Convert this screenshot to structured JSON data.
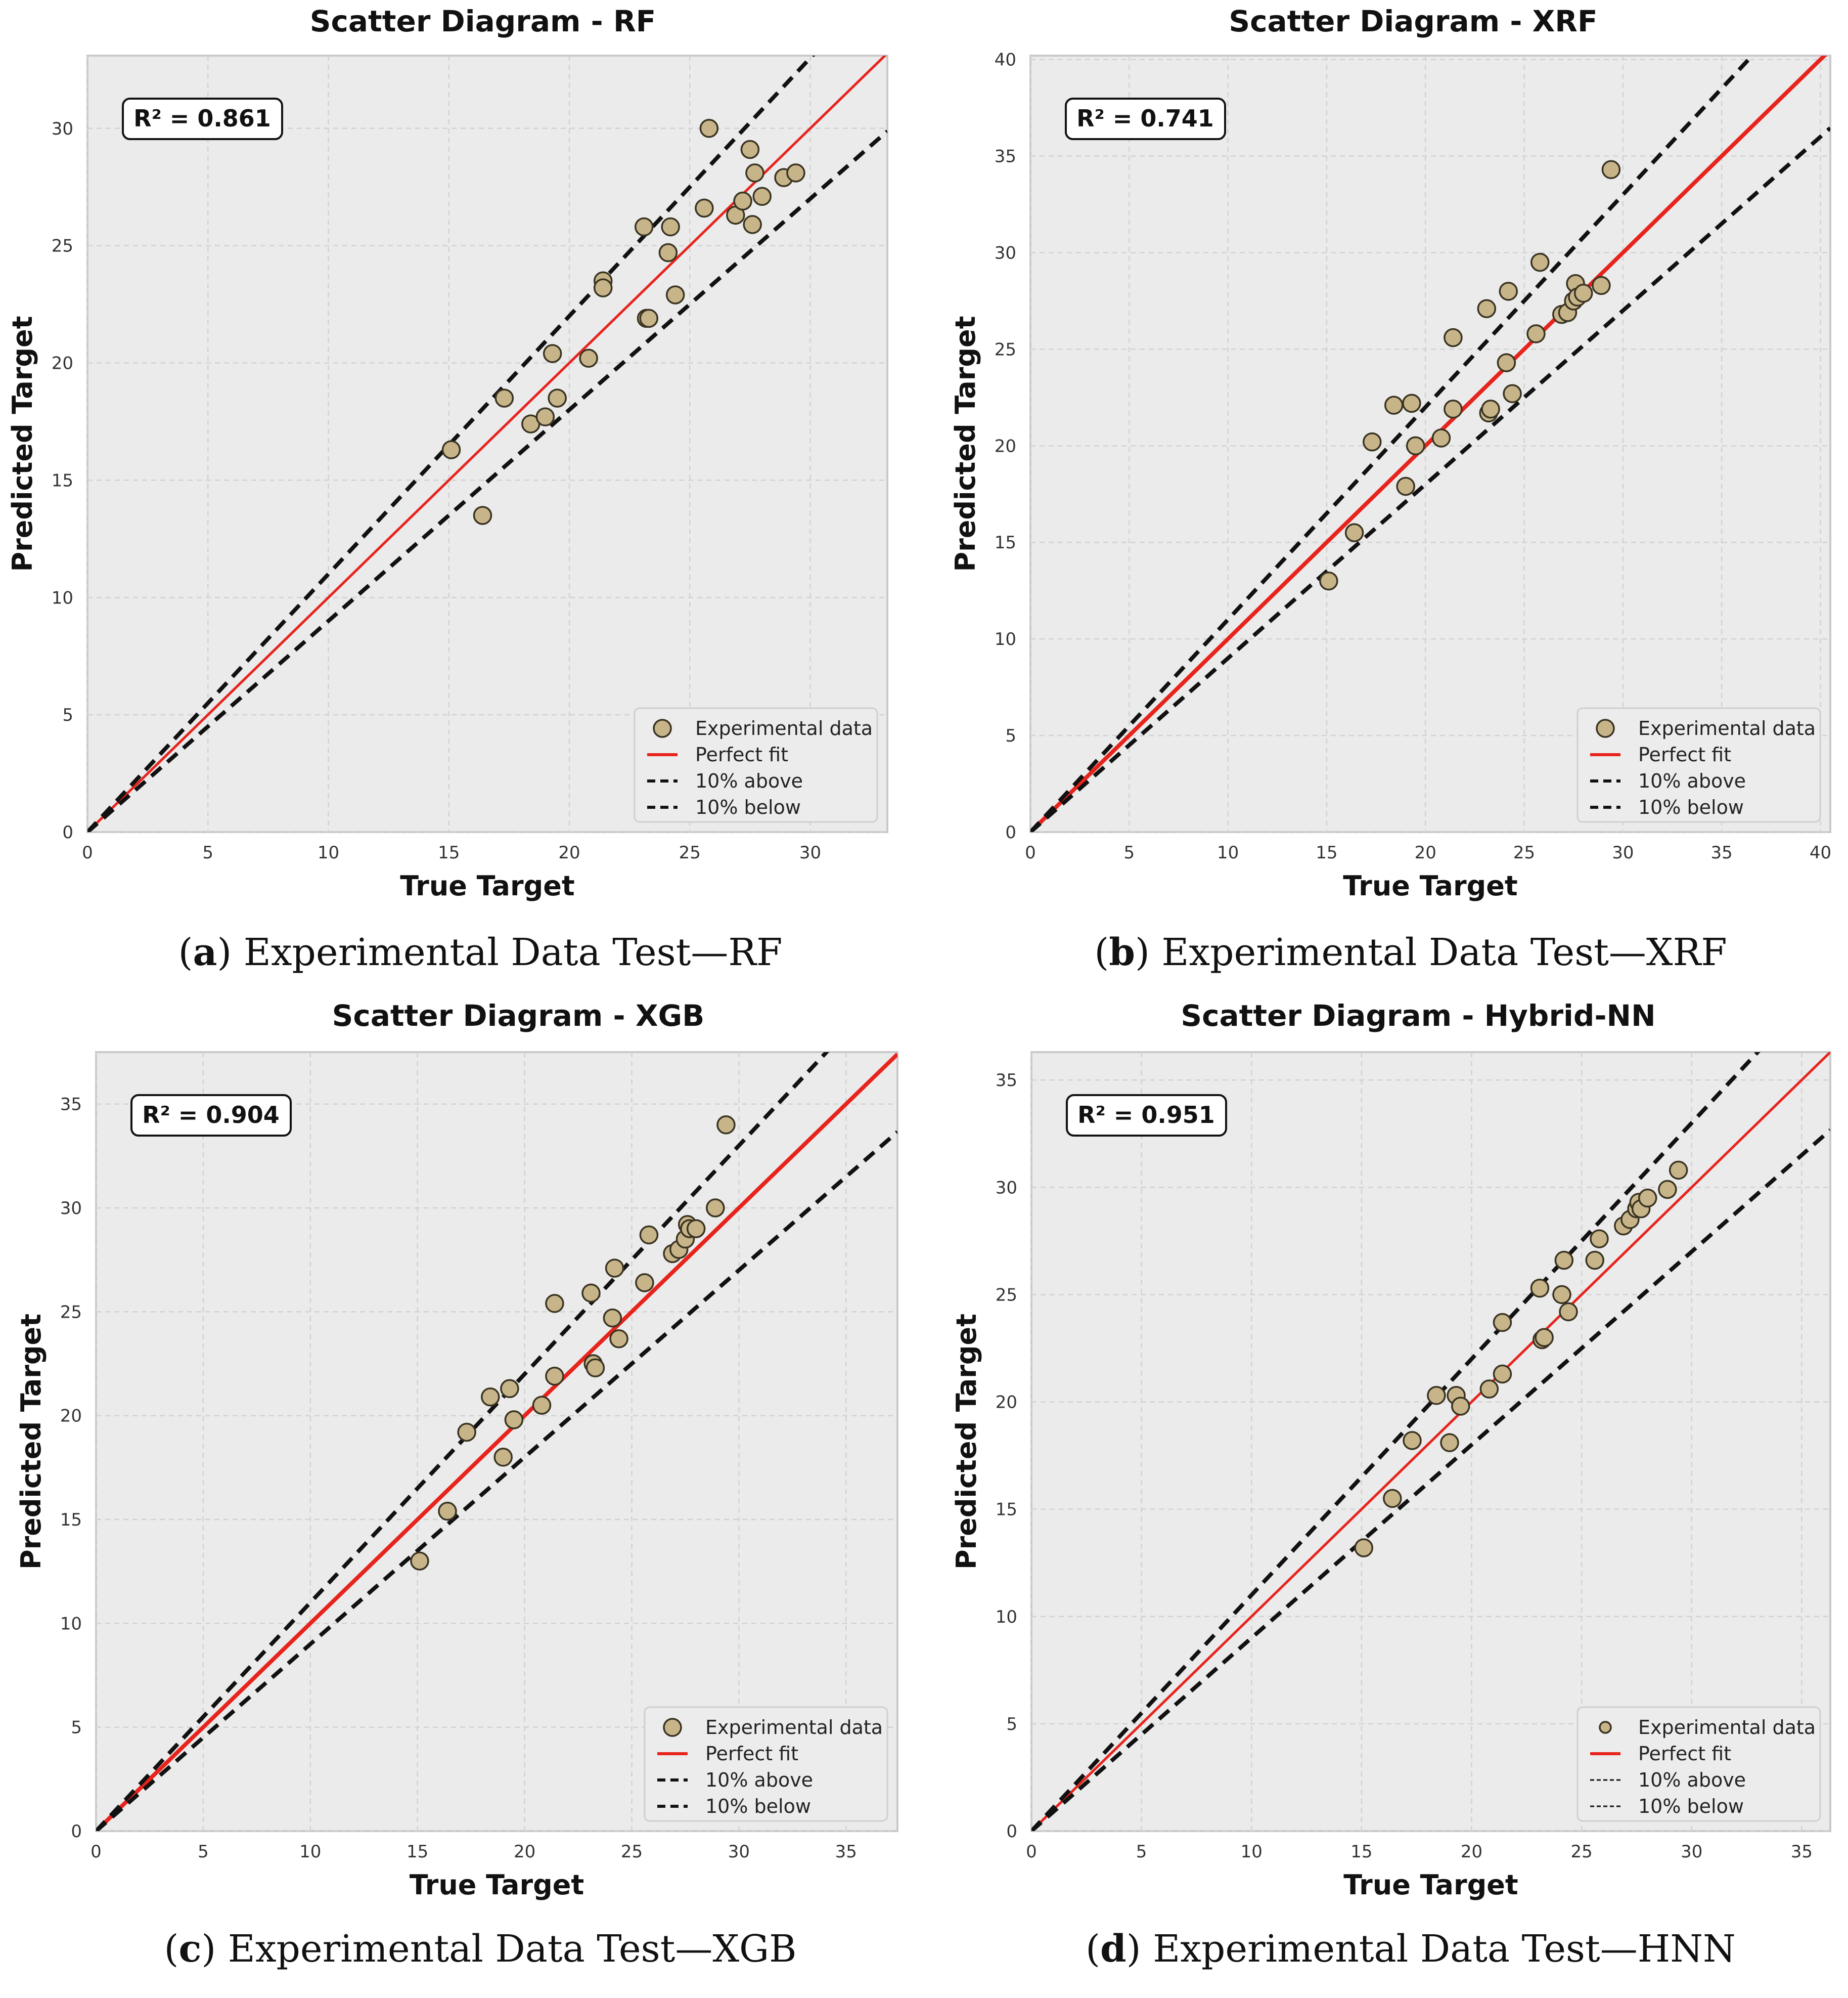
{
  "colors": {
    "plot_bg": "#ebebeb",
    "grid": "#d2d2d2",
    "perfect_fit": "#e8231c",
    "bounds": "#111111",
    "marker_fill": "#c7b589",
    "marker_edge": "#3a3322"
  },
  "panels": [
    {
      "caption_letter": "a",
      "caption_text": "Experimental Data Test—RF",
      "r2_text": "R² = 0.861",
      "legend_labels": [
        "Experimental data",
        "Perfect fit",
        "10% above",
        "10% below"
      ]
    },
    {
      "caption_letter": "b",
      "caption_text": "Experimental Data Test—XRF",
      "r2_text": "R² = 0.741",
      "legend_labels": [
        "Experimental data",
        "Perfect fit",
        "10% above",
        "10% below"
      ]
    },
    {
      "caption_letter": "c",
      "caption_text": "Experimental Data Test—XGB",
      "r2_text": "R² = 0.904",
      "legend_labels": [
        "Experimental data",
        "Perfect fit",
        "10% above",
        "10% below"
      ]
    },
    {
      "caption_letter": "d",
      "caption_text": "Experimental Data Test—HNN",
      "r2_text": "R² = 0.951",
      "legend_labels": [
        "Experimental data",
        "Perfect fit",
        "10% above",
        "10% below"
      ]
    }
  ],
  "chart_data": [
    {
      "type": "scatter",
      "title": "Scatter Diagram - RF",
      "xlabel": "True Target",
      "ylabel": "Predicted Target",
      "xlim": [
        0,
        33.2
      ],
      "ylim": [
        0,
        33.1
      ],
      "xticks": [
        0,
        5,
        10,
        15,
        20,
        25,
        30
      ],
      "yticks": [
        0,
        5,
        10,
        15,
        20,
        25,
        30
      ],
      "grid": true,
      "legend": "bottom-right",
      "x": [
        15.1,
        16.4,
        17.3,
        18.4,
        19.0,
        19.3,
        19.5,
        20.8,
        21.4,
        21.4,
        23.1,
        23.2,
        23.3,
        24.1,
        24.2,
        24.4,
        25.6,
        25.8,
        26.9,
        27.2,
        27.5,
        27.6,
        27.7,
        28.0,
        28.9,
        29.4
      ],
      "y": [
        16.3,
        13.5,
        18.5,
        17.4,
        17.7,
        20.4,
        18.5,
        20.2,
        23.5,
        23.2,
        25.8,
        21.9,
        21.9,
        24.7,
        25.8,
        22.9,
        26.6,
        30.0,
        26.3,
        26.9,
        29.1,
        25.9,
        28.1,
        27.1,
        27.9,
        28.1
      ],
      "series": [
        {
          "name": "Experimental data",
          "kind": "scatter"
        },
        {
          "name": "Perfect fit",
          "kind": "line",
          "slope": 1.0
        },
        {
          "name": "10% above",
          "kind": "dashed-line",
          "slope": 1.1
        },
        {
          "name": "10% below",
          "kind": "dashed-line",
          "slope": 0.9
        }
      ]
    },
    {
      "type": "scatter",
      "title": "Scatter Diagram - XRF",
      "xlabel": "True Target",
      "ylabel": "Predicted Target",
      "xlim": [
        0,
        40.5
      ],
      "ylim": [
        0,
        40.2
      ],
      "xticks": [
        0,
        5,
        10,
        15,
        20,
        25,
        30,
        35,
        40
      ],
      "yticks": [
        0,
        5,
        10,
        15,
        20,
        25,
        30,
        35,
        40
      ],
      "grid": true,
      "legend": "bottom-right",
      "x": [
        15.1,
        16.4,
        17.3,
        18.4,
        19.0,
        19.3,
        19.5,
        20.8,
        21.4,
        21.4,
        23.1,
        23.2,
        23.3,
        24.1,
        24.2,
        24.4,
        25.6,
        25.8,
        26.9,
        27.2,
        27.5,
        27.6,
        27.7,
        28.0,
        28.9,
        29.4
      ],
      "y": [
        13.0,
        15.5,
        20.2,
        22.1,
        17.9,
        22.2,
        20.0,
        20.4,
        25.6,
        21.9,
        27.1,
        21.7,
        21.9,
        24.3,
        28.0,
        22.7,
        25.8,
        29.5,
        26.8,
        26.9,
        27.5,
        28.4,
        27.7,
        27.9,
        28.3,
        34.3
      ],
      "series": [
        {
          "name": "Experimental data",
          "kind": "scatter"
        },
        {
          "name": "Perfect fit",
          "kind": "line",
          "slope": 1.0
        },
        {
          "name": "10% above",
          "kind": "dashed-line",
          "slope": 1.1
        },
        {
          "name": "10% below",
          "kind": "dashed-line",
          "slope": 0.9
        }
      ]
    },
    {
      "type": "scatter",
      "title": "Scatter Diagram - XGB",
      "xlabel": "True Target",
      "ylabel": "Predicted Target",
      "xlim": [
        0,
        37.4
      ],
      "ylim": [
        0,
        37.5
      ],
      "xticks": [
        0,
        5,
        10,
        15,
        20,
        25,
        30,
        35
      ],
      "yticks": [
        0,
        5,
        10,
        15,
        20,
        25,
        30,
        35
      ],
      "grid": true,
      "legend": "bottom-right",
      "x": [
        15.1,
        16.4,
        17.3,
        18.4,
        19.0,
        19.3,
        19.5,
        20.8,
        21.4,
        21.4,
        23.1,
        23.2,
        23.3,
        24.1,
        24.2,
        24.4,
        25.6,
        25.8,
        26.9,
        27.2,
        27.5,
        27.6,
        27.7,
        28.0,
        28.9,
        29.4
      ],
      "y": [
        13.0,
        15.4,
        19.2,
        20.9,
        18.0,
        21.3,
        19.8,
        20.5,
        25.4,
        21.9,
        25.9,
        22.5,
        22.3,
        24.7,
        27.1,
        23.7,
        26.4,
        28.7,
        27.8,
        28.0,
        28.5,
        29.2,
        29.0,
        29.0,
        30.0,
        34.0
      ],
      "series": [
        {
          "name": "Experimental data",
          "kind": "scatter"
        },
        {
          "name": "Perfect fit",
          "kind": "line",
          "slope": 1.0
        },
        {
          "name": "10% above",
          "kind": "dashed-line",
          "slope": 1.1
        },
        {
          "name": "10% below",
          "kind": "dashed-line",
          "slope": 0.9
        }
      ]
    },
    {
      "type": "scatter",
      "title": "Scatter Diagram - Hybrid-NN",
      "xlabel": "True Target",
      "ylabel": "Predicted Target",
      "xlim": [
        0,
        36.3
      ],
      "ylim": [
        0,
        36.3
      ],
      "xticks": [
        0,
        5,
        10,
        15,
        20,
        25,
        30,
        35
      ],
      "yticks": [
        0,
        5,
        10,
        15,
        20,
        25,
        30,
        35
      ],
      "grid": true,
      "legend": "bottom-right",
      "x": [
        15.1,
        16.4,
        17.3,
        18.4,
        19.0,
        19.3,
        19.5,
        20.8,
        21.4,
        21.4,
        23.1,
        23.2,
        23.3,
        24.1,
        24.2,
        24.4,
        25.6,
        25.8,
        26.9,
        27.2,
        27.5,
        27.6,
        27.7,
        28.0,
        28.9,
        29.4
      ],
      "y": [
        13.2,
        15.5,
        18.2,
        20.3,
        18.1,
        20.3,
        19.8,
        20.6,
        23.7,
        21.3,
        25.3,
        22.9,
        23.0,
        25.0,
        26.6,
        24.2,
        26.6,
        27.6,
        28.2,
        28.5,
        29.0,
        29.3,
        29.0,
        29.5,
        29.9,
        30.8
      ],
      "series": [
        {
          "name": "Experimental data",
          "kind": "scatter"
        },
        {
          "name": "Perfect fit",
          "kind": "line",
          "slope": 1.0
        },
        {
          "name": "10% above",
          "kind": "dashed-line",
          "slope": 1.1
        },
        {
          "name": "10% below",
          "kind": "dashed-line",
          "slope": 0.9
        }
      ]
    }
  ]
}
